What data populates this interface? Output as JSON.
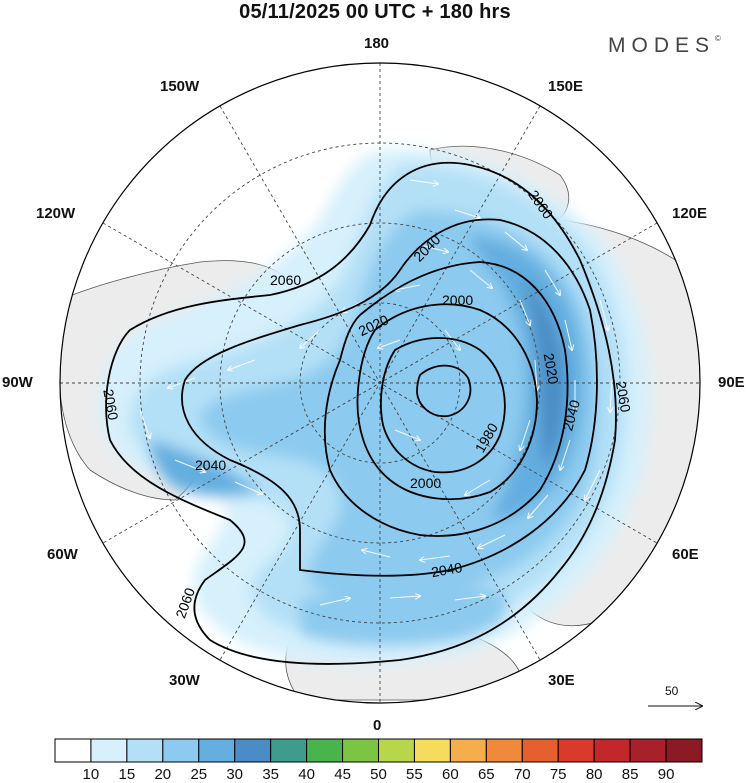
{
  "title": "05/11/2025  00 UTC  + 180 hrs",
  "brand": "MODES",
  "brand_mark": "©",
  "longitude_labels": {
    "top": "180",
    "bottom": "0",
    "left": "90W",
    "right": "90E",
    "upper_left_outer": "150W",
    "upper_left_inner": "120W",
    "upper_right_outer": "150E",
    "upper_right_inner": "120E",
    "lower_left_inner": "60W",
    "lower_left_outer": "30W",
    "lower_right_inner": "60E",
    "lower_right_outer": "30E"
  },
  "contour_labels": [
    "2060",
    "2060",
    "2060",
    "2060",
    "2060",
    "2040",
    "2040",
    "2040",
    "2040",
    "2020",
    "2020",
    "2000",
    "2000",
    "1980"
  ],
  "wind_reference": "50",
  "colorbar": {
    "labels": [
      "10",
      "15",
      "20",
      "25",
      "30",
      "35",
      "40",
      "45",
      "50",
      "55",
      "60",
      "65",
      "70",
      "75",
      "80",
      "85",
      "90"
    ],
    "colors": [
      "#ffffff",
      "#d6f0fc",
      "#b4e0f7",
      "#8ccaef",
      "#64aee0",
      "#4a8cc5",
      "#3e9c8c",
      "#49b44e",
      "#7cc444",
      "#b8d64c",
      "#f6dc5c",
      "#f4ae4c",
      "#ef8a3c",
      "#e6602f",
      "#da3a2e",
      "#c2272c",
      "#a8202a",
      "#8c1a24"
    ]
  },
  "colors": {
    "land": "#ececec",
    "ocean": "#ffffff",
    "contour": "#000000",
    "grid": "#444444"
  }
}
